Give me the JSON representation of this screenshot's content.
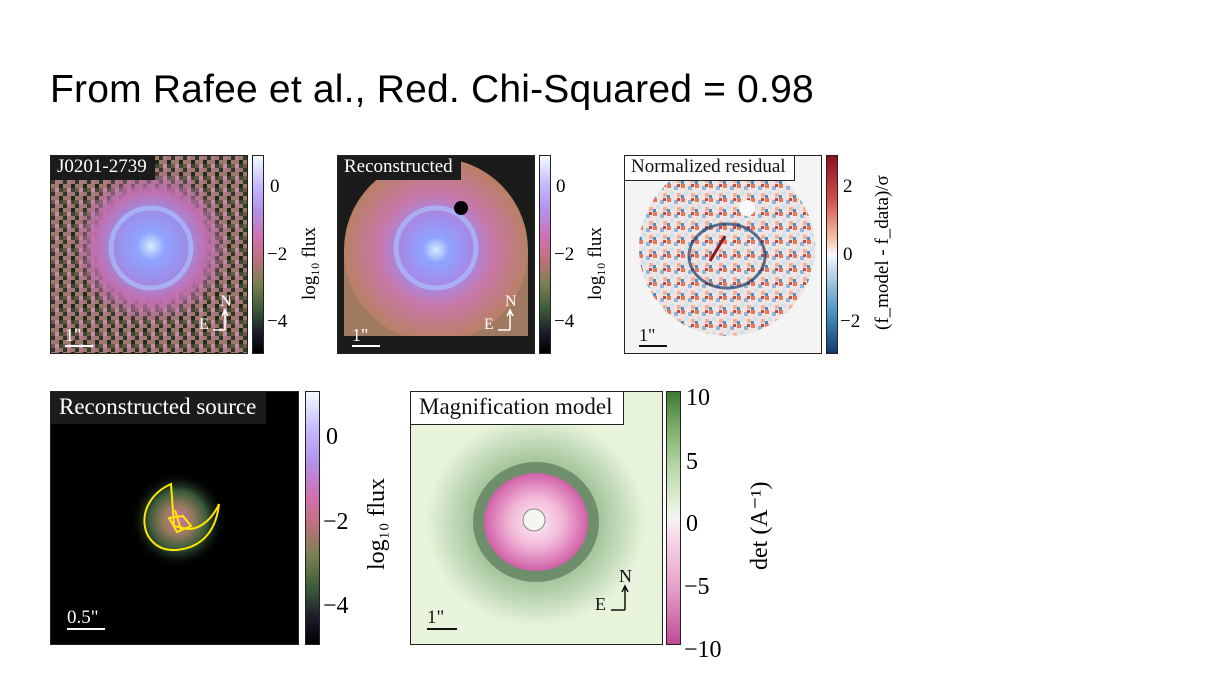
{
  "slide": {
    "title": "From Rafee et al., Red. Chi-Squared = 0.98"
  },
  "panels": {
    "data": {
      "tag": "J0201-2739",
      "scale": "1\"",
      "compass_n": "N",
      "compass_e": "E"
    },
    "reconstructed": {
      "tag": "Reconstructed",
      "scale": "1\"",
      "compass_n": "N",
      "compass_e": "E"
    },
    "residual": {
      "tag": "Normalized residual",
      "scale": "1\""
    },
    "source": {
      "tag": "Reconstructed source",
      "scale": "0.5\""
    },
    "magnification": {
      "tag": "Magnification model",
      "scale": "1\"",
      "compass_n": "N",
      "compass_e": "E"
    }
  },
  "colorbars": {
    "flux": {
      "label": "log₁₀ flux",
      "ticks": [
        "0",
        "−2",
        "−4"
      ]
    },
    "residual": {
      "label": "(f_model - f_data)/σ",
      "ticks": [
        "2",
        "0",
        "−2"
      ]
    },
    "flux_source": {
      "label": "log₁₀ flux",
      "ticks": [
        "0",
        "−2",
        "−4"
      ]
    },
    "det": {
      "label": "det (A⁻¹)",
      "ticks": [
        "10",
        "5",
        "0",
        "−5",
        "−10"
      ]
    }
  },
  "colors": {
    "lens_core": "#8fa4ff",
    "lens_halo": "#c070b0",
    "positive_residual": "#b2182b",
    "negative_residual": "#2166ac",
    "caustic": "#ffe600",
    "mag_green": "#6f9a6a",
    "mag_pink": "#d060a8"
  }
}
